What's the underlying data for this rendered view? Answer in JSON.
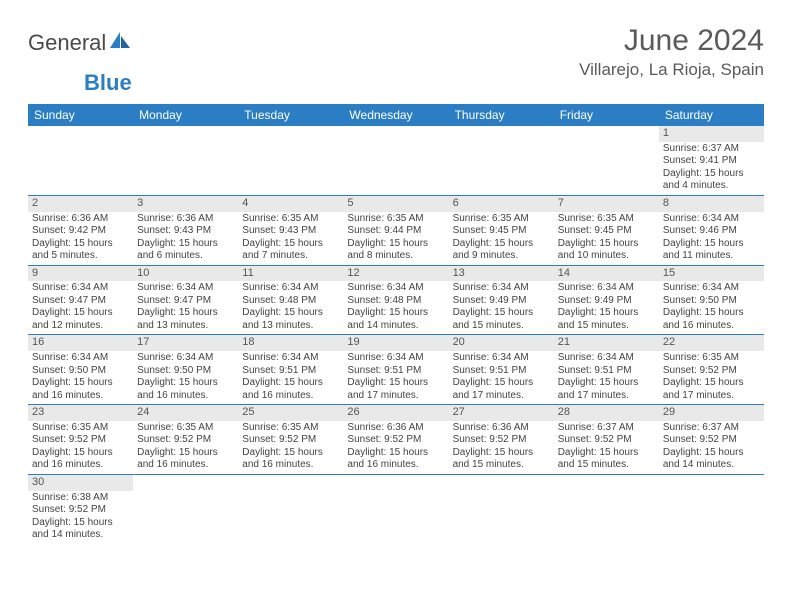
{
  "brand": {
    "word1": "General",
    "word2": "Blue"
  },
  "title": "June 2024",
  "location": "Villarejo, La Rioja, Spain",
  "colors": {
    "header_bg": "#2b7dc4",
    "daynum_bg": "#e9e9e9",
    "rule": "#2b7dc4"
  },
  "weekdays": [
    "Sunday",
    "Monday",
    "Tuesday",
    "Wednesday",
    "Thursday",
    "Friday",
    "Saturday"
  ],
  "first_weekday_index": 6,
  "days": [
    {
      "n": 1,
      "sr": "6:37 AM",
      "ss": "9:41 PM",
      "dl": "15 hours and 4 minutes."
    },
    {
      "n": 2,
      "sr": "6:36 AM",
      "ss": "9:42 PM",
      "dl": "15 hours and 5 minutes."
    },
    {
      "n": 3,
      "sr": "6:36 AM",
      "ss": "9:43 PM",
      "dl": "15 hours and 6 minutes."
    },
    {
      "n": 4,
      "sr": "6:35 AM",
      "ss": "9:43 PM",
      "dl": "15 hours and 7 minutes."
    },
    {
      "n": 5,
      "sr": "6:35 AM",
      "ss": "9:44 PM",
      "dl": "15 hours and 8 minutes."
    },
    {
      "n": 6,
      "sr": "6:35 AM",
      "ss": "9:45 PM",
      "dl": "15 hours and 9 minutes."
    },
    {
      "n": 7,
      "sr": "6:35 AM",
      "ss": "9:45 PM",
      "dl": "15 hours and 10 minutes."
    },
    {
      "n": 8,
      "sr": "6:34 AM",
      "ss": "9:46 PM",
      "dl": "15 hours and 11 minutes."
    },
    {
      "n": 9,
      "sr": "6:34 AM",
      "ss": "9:47 PM",
      "dl": "15 hours and 12 minutes."
    },
    {
      "n": 10,
      "sr": "6:34 AM",
      "ss": "9:47 PM",
      "dl": "15 hours and 13 minutes."
    },
    {
      "n": 11,
      "sr": "6:34 AM",
      "ss": "9:48 PM",
      "dl": "15 hours and 13 minutes."
    },
    {
      "n": 12,
      "sr": "6:34 AM",
      "ss": "9:48 PM",
      "dl": "15 hours and 14 minutes."
    },
    {
      "n": 13,
      "sr": "6:34 AM",
      "ss": "9:49 PM",
      "dl": "15 hours and 15 minutes."
    },
    {
      "n": 14,
      "sr": "6:34 AM",
      "ss": "9:49 PM",
      "dl": "15 hours and 15 minutes."
    },
    {
      "n": 15,
      "sr": "6:34 AM",
      "ss": "9:50 PM",
      "dl": "15 hours and 16 minutes."
    },
    {
      "n": 16,
      "sr": "6:34 AM",
      "ss": "9:50 PM",
      "dl": "15 hours and 16 minutes."
    },
    {
      "n": 17,
      "sr": "6:34 AM",
      "ss": "9:50 PM",
      "dl": "15 hours and 16 minutes."
    },
    {
      "n": 18,
      "sr": "6:34 AM",
      "ss": "9:51 PM",
      "dl": "15 hours and 16 minutes."
    },
    {
      "n": 19,
      "sr": "6:34 AM",
      "ss": "9:51 PM",
      "dl": "15 hours and 17 minutes."
    },
    {
      "n": 20,
      "sr": "6:34 AM",
      "ss": "9:51 PM",
      "dl": "15 hours and 17 minutes."
    },
    {
      "n": 21,
      "sr": "6:34 AM",
      "ss": "9:51 PM",
      "dl": "15 hours and 17 minutes."
    },
    {
      "n": 22,
      "sr": "6:35 AM",
      "ss": "9:52 PM",
      "dl": "15 hours and 17 minutes."
    },
    {
      "n": 23,
      "sr": "6:35 AM",
      "ss": "9:52 PM",
      "dl": "15 hours and 16 minutes."
    },
    {
      "n": 24,
      "sr": "6:35 AM",
      "ss": "9:52 PM",
      "dl": "15 hours and 16 minutes."
    },
    {
      "n": 25,
      "sr": "6:35 AM",
      "ss": "9:52 PM",
      "dl": "15 hours and 16 minutes."
    },
    {
      "n": 26,
      "sr": "6:36 AM",
      "ss": "9:52 PM",
      "dl": "15 hours and 16 minutes."
    },
    {
      "n": 27,
      "sr": "6:36 AM",
      "ss": "9:52 PM",
      "dl": "15 hours and 15 minutes."
    },
    {
      "n": 28,
      "sr": "6:37 AM",
      "ss": "9:52 PM",
      "dl": "15 hours and 15 minutes."
    },
    {
      "n": 29,
      "sr": "6:37 AM",
      "ss": "9:52 PM",
      "dl": "15 hours and 14 minutes."
    },
    {
      "n": 30,
      "sr": "6:38 AM",
      "ss": "9:52 PM",
      "dl": "15 hours and 14 minutes."
    }
  ],
  "labels": {
    "sunrise": "Sunrise:",
    "sunset": "Sunset:",
    "daylight": "Daylight:"
  }
}
